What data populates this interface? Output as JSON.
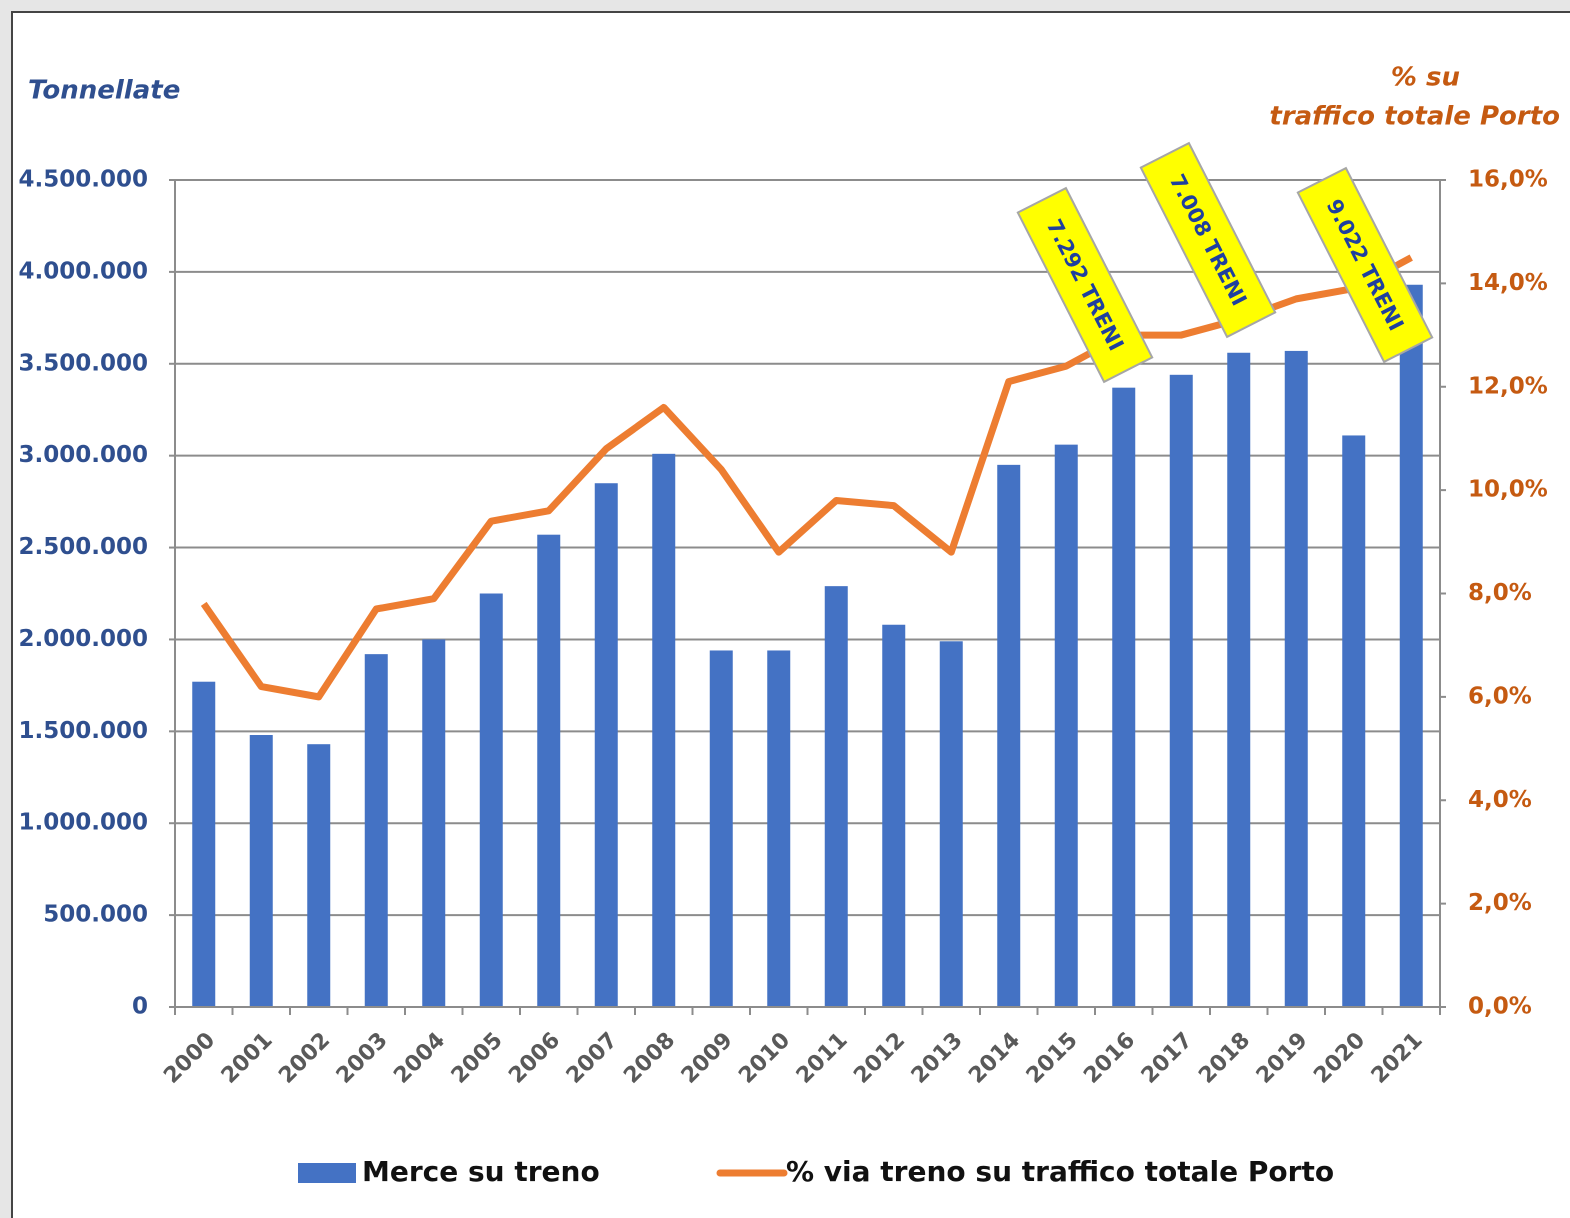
{
  "chart_data": {
    "type": "bar_line",
    "y_label": "Tonnellate",
    "y2_label": [
      "% su",
      "traffico totale Porto"
    ],
    "categories": [
      "2000",
      "2001",
      "2002",
      "2003",
      "2004",
      "2005",
      "2006",
      "2007",
      "2008",
      "2009",
      "2010",
      "2011",
      "2012",
      "2013",
      "2014",
      "2015",
      "2016",
      "2017",
      "2018",
      "2019",
      "2020",
      "2021"
    ],
    "series": [
      {
        "name": "Merce su treno",
        "type": "bar",
        "color": "#4472c4",
        "values": [
          1770000,
          1480000,
          1430000,
          1920000,
          2000000,
          2250000,
          2570000,
          2850000,
          3010000,
          1940000,
          1940000,
          2290000,
          2080000,
          1990000,
          2950000,
          3060000,
          3370000,
          3440000,
          3560000,
          3570000,
          3110000,
          3930000
        ]
      },
      {
        "name": "% via treno su traffico totale Porto",
        "type": "line",
        "axis": "y2",
        "color": "#ed7d31",
        "values": [
          7.8,
          6.2,
          6.0,
          7.7,
          7.9,
          9.4,
          9.6,
          10.8,
          11.6,
          10.4,
          8.8,
          9.8,
          9.7,
          8.8,
          12.1,
          12.4,
          13.0,
          13.0,
          13.3,
          13.7,
          13.9,
          14.5
        ]
      }
    ],
    "ylim": [
      0,
      4500000
    ],
    "yticks": [
      0,
      {
        "value": 500000,
        "label": "500.000"
      },
      {
        "value": 1000000,
        "label": "1.000.000"
      },
      {
        "value": 1500000,
        "label": "1.500.000"
      },
      {
        "value": 2000000,
        "label": "2.000.000"
      },
      {
        "value": 2500000,
        "label": "2.500.000"
      },
      {
        "value": 3000000,
        "label": "3.000.000"
      },
      {
        "value": 3500000,
        "label": "3.500.000"
      },
      {
        "value": 4000000,
        "label": "4.000.000"
      },
      {
        "value": 4500000,
        "label": "4.500.000"
      }
    ],
    "y2lim": [
      0,
      16
    ],
    "y2ticks": [
      {
        "value": 0,
        "label": "0,0%"
      },
      {
        "value": 2,
        "label": "2,0%"
      },
      {
        "value": 4,
        "label": "4,0%"
      },
      {
        "value": 6,
        "label": "6,0%"
      },
      {
        "value": 8,
        "label": "8,0%"
      },
      {
        "value": 10,
        "label": "10,0%"
      },
      {
        "value": 12,
        "label": "12,0%"
      },
      {
        "value": 14,
        "label": "14,0%"
      },
      {
        "value": 16,
        "label": "16,0%"
      }
    ],
    "grid": true,
    "legend": "bottom",
    "annotations": [
      "7.292 TRENI",
      "7.008 TRENI",
      "9.022 TRENI"
    ]
  }
}
